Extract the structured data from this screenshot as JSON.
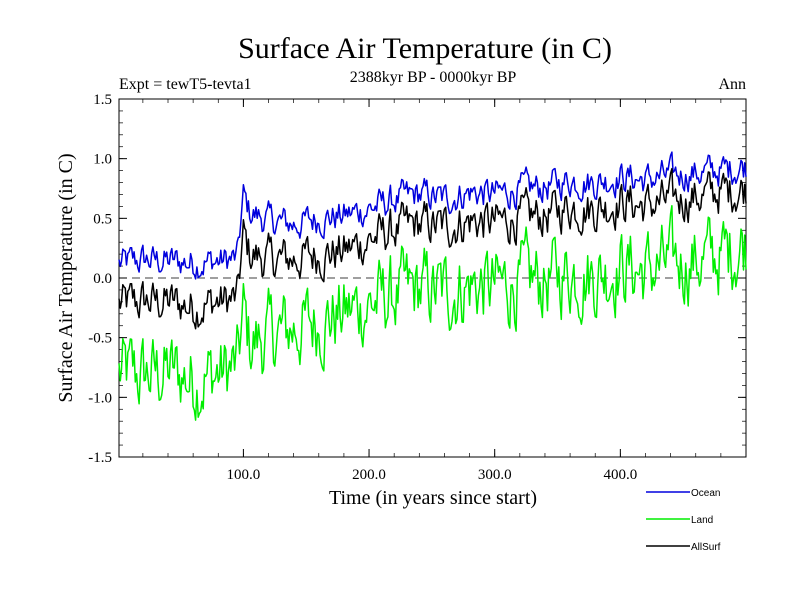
{
  "chart_data": {
    "type": "line",
    "title": "Surface Air Temperature (in C)",
    "subtitle": "2388kyr BP - 0000kyr BP",
    "experiment_label": "Expt = tewT5-tevta1",
    "season_label": "Ann",
    "xlabel": "Time (in years since start)",
    "ylabel": "Surface Air Temperature (in C)",
    "xlim": [
      1,
      500
    ],
    "ylim": [
      -1.5,
      1.5
    ],
    "x_ticks": [
      100,
      200,
      300,
      400
    ],
    "x_tick_labels": [
      "100.0",
      "200.0",
      "300.0",
      "400.0"
    ],
    "y_ticks": [
      -1.5,
      -1.0,
      -0.5,
      0.0,
      0.5,
      1.0,
      1.5
    ],
    "y_tick_labels": [
      "-1.5",
      "-1.0",
      "-0.5",
      "0.0",
      "0.5",
      "1.0",
      "1.5"
    ],
    "zero_line": "dashed",
    "legend_position": "bottom-right",
    "series": [
      {
        "name": "Ocean",
        "color": "#0000dd",
        "x": [
          1,
          20,
          40,
          60,
          80,
          95,
          100,
          105,
          120,
          140,
          160,
          180,
          200,
          220,
          240,
          260,
          280,
          300,
          320,
          340,
          360,
          380,
          400,
          420,
          440,
          460,
          480,
          500
        ],
        "values": [
          0.12,
          0.15,
          0.14,
          0.13,
          0.14,
          0.16,
          0.68,
          0.55,
          0.48,
          0.45,
          0.5,
          0.52,
          0.58,
          0.65,
          0.7,
          0.66,
          0.72,
          0.7,
          0.74,
          0.76,
          0.82,
          0.8,
          0.85,
          0.82,
          0.86,
          0.88,
          0.9,
          0.94
        ]
      },
      {
        "name": "Land",
        "color": "#00ee00",
        "x": [
          1,
          20,
          40,
          60,
          80,
          95,
          100,
          105,
          120,
          140,
          160,
          180,
          200,
          220,
          240,
          260,
          280,
          300,
          320,
          340,
          360,
          380,
          400,
          420,
          440,
          460,
          480,
          500
        ],
        "values": [
          -0.8,
          -0.82,
          -0.78,
          -0.85,
          -0.8,
          -0.75,
          -0.3,
          -0.55,
          -0.5,
          -0.42,
          -0.36,
          -0.3,
          -0.22,
          -0.15,
          -0.1,
          -0.12,
          -0.06,
          -0.08,
          -0.04,
          -0.02,
          0.05,
          0.02,
          0.1,
          0.05,
          0.12,
          0.15,
          0.18,
          0.3
        ]
      },
      {
        "name": "AllSurf",
        "color": "#000000",
        "x": [
          1,
          20,
          40,
          60,
          80,
          95,
          100,
          105,
          120,
          140,
          160,
          180,
          200,
          220,
          240,
          260,
          280,
          300,
          320,
          340,
          360,
          380,
          400,
          420,
          440,
          460,
          480,
          500
        ],
        "values": [
          -0.22,
          -0.2,
          -0.2,
          -0.24,
          -0.2,
          -0.18,
          0.35,
          0.2,
          0.15,
          0.16,
          0.2,
          0.22,
          0.32,
          0.4,
          0.45,
          0.43,
          0.48,
          0.46,
          0.5,
          0.52,
          0.6,
          0.58,
          0.64,
          0.6,
          0.65,
          0.68,
          0.72,
          0.75
        ]
      }
    ]
  }
}
